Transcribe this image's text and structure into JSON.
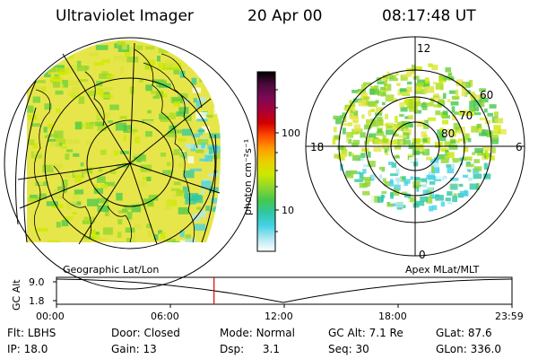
{
  "header": {
    "instrument": "Ultraviolet Imager",
    "date": "20 Apr 00",
    "time": "08:17:48 UT"
  },
  "colorbar": {
    "unit_label": "photon cm⁻²s⁻¹",
    "ticks": [
      "100",
      "10"
    ],
    "colors": [
      "#000000",
      "#4b0a3c",
      "#7a0a55",
      "#a8003a",
      "#d20000",
      "#ff4c00",
      "#ff9c00",
      "#e9d000",
      "#cde800",
      "#8fd62f",
      "#45c84d",
      "#2fc7a4",
      "#44d2e6",
      "#b0e8f2",
      "#ffffff"
    ]
  },
  "left_map": {
    "label": "Geographic Lat/Lon"
  },
  "right_map": {
    "label": "Apex MLat/MLT",
    "mlt_labels": {
      "top": "12",
      "left": "18",
      "right": "6",
      "bottom": "0"
    },
    "lat_labels": [
      "60",
      "70",
      "80"
    ]
  },
  "altitude_plot": {
    "axis_label": "GC Alt",
    "y_ticks": [
      "9.0",
      "1.8"
    ],
    "x_ticks": [
      "00:00",
      "06:00",
      "12:00",
      "18:00",
      "23:59"
    ],
    "current_time_hours": 8.3
  },
  "info": {
    "filter_label": "Flt:",
    "filter": "LBHS",
    "ip_label": "IP:",
    "ip": "18.0",
    "door_label": "Door:",
    "door": "Closed",
    "gain_label": "Gain:",
    "gain": "13",
    "mode_label": "Mode:",
    "mode": "Normal",
    "dsp_label": "Dsp:",
    "dsp": "3.1",
    "gcalt_label": "GC Alt:",
    "gcalt": "7.1 Re",
    "seq_label": "Seq:",
    "seq": "30",
    "glat_label": "GLat:",
    "glat": "87.6",
    "glon_label": "GLon:",
    "glon": "336.0"
  }
}
